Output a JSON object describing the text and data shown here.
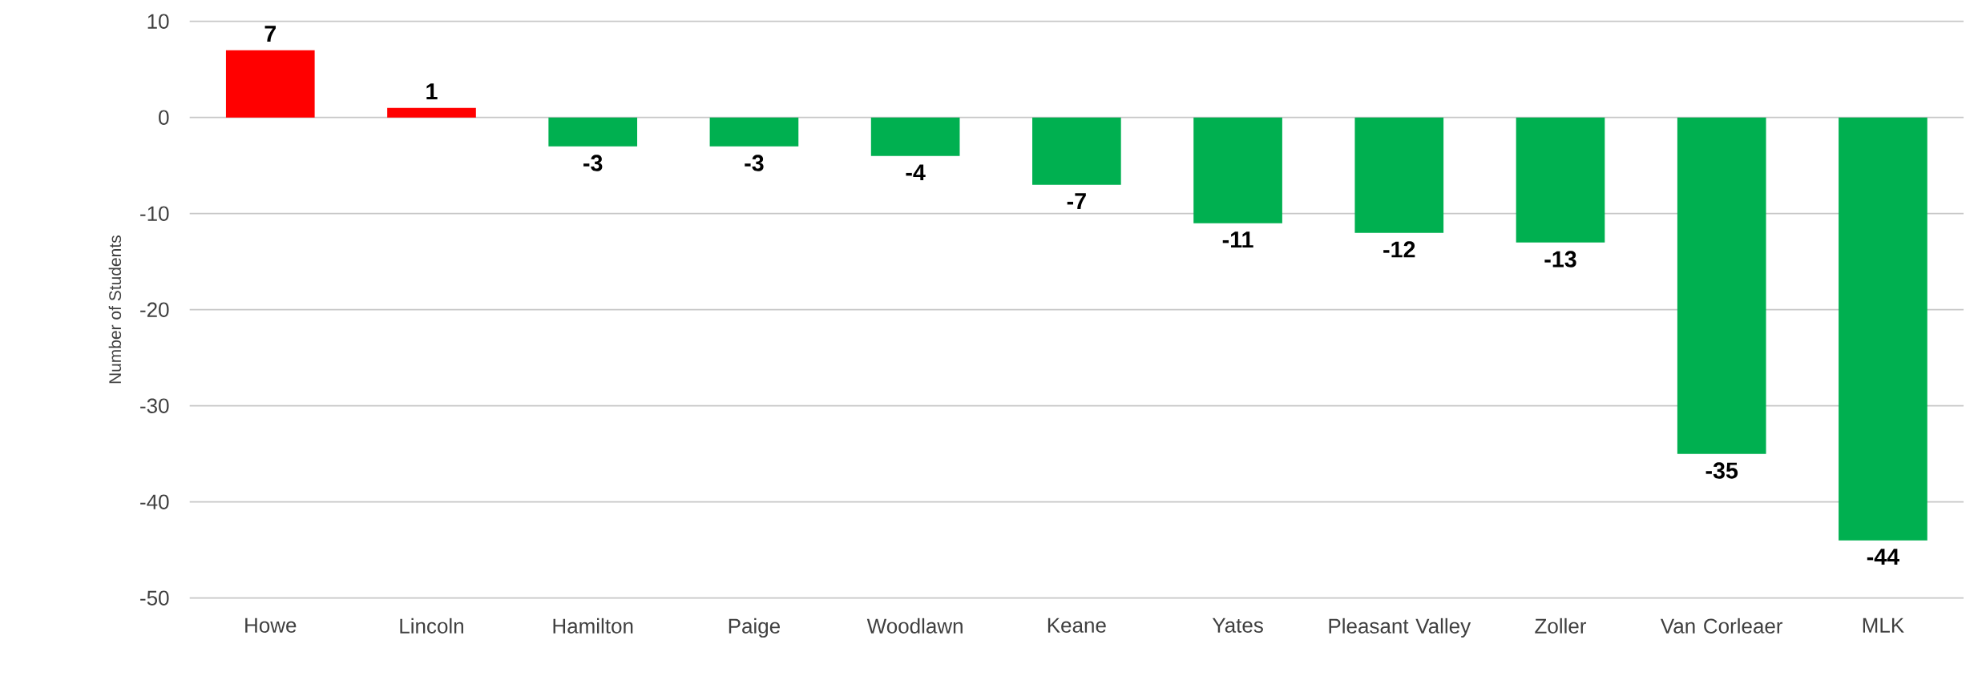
{
  "chart_data": {
    "type": "bar",
    "ylabel": "Number of Students",
    "categories": [
      "Howe",
      "Lincoln",
      "Hamilton",
      "Paige",
      "Woodlawn",
      "Keane",
      "Yates",
      "Pleasant Valley",
      "Zoller",
      "Van Corleaer",
      "MLK"
    ],
    "values": [
      7,
      1,
      -3,
      -3,
      -4,
      -7,
      -11,
      -12,
      -13,
      -35,
      -44
    ],
    "colors": [
      "#ff0000",
      "#ff0000",
      "#00b050",
      "#00b050",
      "#00b050",
      "#00b050",
      "#00b050",
      "#00b050",
      "#00b050",
      "#00b050",
      "#00b050"
    ],
    "ylim": [
      -50,
      10
    ],
    "yticks": [
      -50,
      -40,
      -30,
      -20,
      -10,
      0,
      10
    ],
    "grid": "y",
    "data_labels": true
  }
}
